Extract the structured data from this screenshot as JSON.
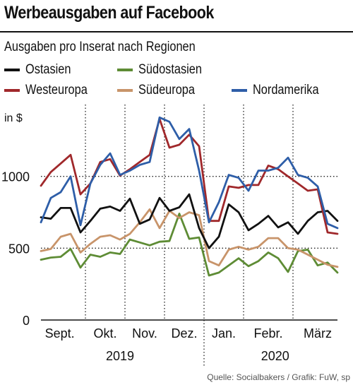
{
  "title": "Werbeausgaben auf Facebook",
  "subtitle": "Ausgaben pro Inserat nach Regionen",
  "source": "Quelle: Socialbakers / Grafik: FuW, sp",
  "chart_data": {
    "type": "line",
    "ylabel": "in $",
    "ylim": [
      0,
      1500
    ],
    "yticks": [
      0,
      500,
      1000
    ],
    "month_labels": [
      "Sept.",
      "Okt.",
      "Nov.",
      "Dez.",
      "Jan.",
      "Febr.",
      "März"
    ],
    "year_labels": [
      "2019",
      "2020"
    ],
    "x": [
      0,
      1,
      2,
      3,
      4,
      5,
      6,
      7,
      8,
      9,
      10,
      11,
      12,
      13,
      14,
      15,
      16,
      17,
      18,
      19,
      20,
      21,
      22,
      23,
      24,
      25,
      26,
      27,
      28,
      29,
      30
    ],
    "series": [
      {
        "name": "Ostasien",
        "color": "#111111",
        "values": [
          715,
          705,
          780,
          780,
          610,
          690,
          775,
          790,
          760,
          845,
          670,
          700,
          850,
          760,
          785,
          875,
          640,
          500,
          580,
          805,
          750,
          625,
          670,
          725,
          645,
          680,
          600,
          690,
          750,
          760,
          690
        ]
      },
      {
        "name": "Westeuropa",
        "color": "#a0282b",
        "values": [
          935,
          1030,
          1090,
          1150,
          875,
          950,
          1100,
          1120,
          1005,
          1050,
          1100,
          1150,
          1400,
          1200,
          1220,
          1290,
          1210,
          690,
          690,
          930,
          920,
          940,
          940,
          1075,
          1050,
          1000,
          950,
          900,
          910,
          610,
          600
        ]
      },
      {
        "name": "Südostasien",
        "color": "#5e8c35",
        "values": [
          420,
          435,
          440,
          495,
          365,
          455,
          440,
          470,
          460,
          560,
          540,
          520,
          545,
          550,
          740,
          565,
          575,
          310,
          330,
          380,
          430,
          375,
          410,
          470,
          430,
          335,
          480,
          490,
          380,
          400,
          330
        ]
      },
      {
        "name": "Südeuropa",
        "color": "#c8946a",
        "values": [
          480,
          495,
          580,
          600,
          470,
          530,
          580,
          590,
          560,
          600,
          680,
          770,
          640,
          760,
          710,
          750,
          730,
          410,
          380,
          490,
          510,
          490,
          510,
          570,
          570,
          500,
          490,
          455,
          420,
          385,
          370
        ]
      },
      {
        "name": "Nordamerika",
        "color": "#2e5ea8",
        "values": [
          680,
          850,
          890,
          1000,
          660,
          950,
          1080,
          1160,
          1010,
          1040,
          1080,
          1100,
          1410,
          1380,
          1260,
          1330,
          1040,
          680,
          820,
          1010,
          990,
          900,
          1040,
          1040,
          1060,
          1130,
          1010,
          990,
          930,
          670,
          640
        ]
      }
    ]
  }
}
